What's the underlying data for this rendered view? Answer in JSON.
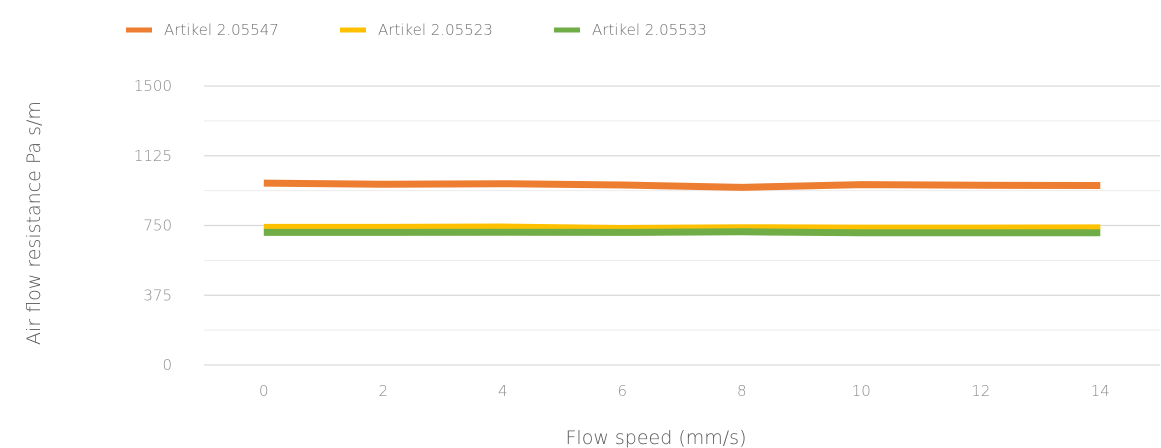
{
  "chart_data": {
    "type": "line",
    "title": "",
    "xlabel": "Flow speed (mm/s)",
    "ylabel": "Air flow resistance Pa s/m",
    "categories": [
      "0",
      "2",
      "4",
      "6",
      "8",
      "10",
      "12",
      "14"
    ],
    "y_ticks": [
      "0",
      "375",
      "750",
      "1125",
      "1500"
    ],
    "ylim": [
      0,
      1500
    ],
    "grid": true,
    "legend_position": "top-left",
    "series": [
      {
        "name": "Artikel 2.05547",
        "color": "#ED7D31",
        "values": [
          978,
          972,
          975,
          968,
          955,
          970,
          966,
          965
        ]
      },
      {
        "name": "Artikel 2.05523",
        "color": "#FFC000",
        "values": [
          740,
          740,
          742,
          734,
          738,
          736,
          736,
          737
        ]
      },
      {
        "name": "Artikel 2.05533",
        "color": "#70AD47",
        "values": [
          713,
          713,
          714,
          713,
          716,
          711,
          711,
          711
        ]
      }
    ]
  }
}
